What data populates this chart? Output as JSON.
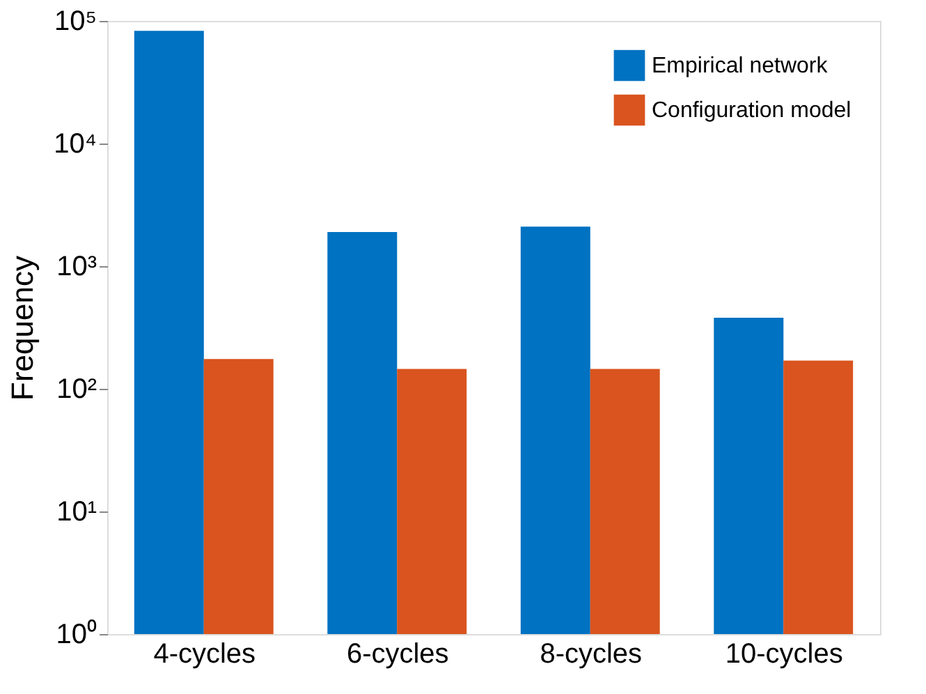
{
  "chart_data": {
    "type": "bar",
    "ylabel": "Frequency",
    "categories": [
      "4-cycles",
      "6-cycles",
      "8-cycles",
      "10-cycles"
    ],
    "series": [
      {
        "name": "Empirical network",
        "color": "#0072c2",
        "values": [
          83000,
          1900,
          2100,
          380
        ]
      },
      {
        "name": "Configuration model",
        "color": "#d9541e",
        "values": [
          175,
          145,
          145,
          170
        ]
      }
    ],
    "log": true,
    "ylim": [
      1,
      100000
    ],
    "yticks": [
      {
        "value": 1,
        "label": "10⁰"
      },
      {
        "value": 10,
        "label": "10¹"
      },
      {
        "value": 100,
        "label": "10²"
      },
      {
        "value": 1000,
        "label": "10³"
      },
      {
        "value": 10000,
        "label": "10⁴"
      },
      {
        "value": 100000,
        "label": "10⁵"
      }
    ],
    "grid": false,
    "legend": "top right"
  }
}
